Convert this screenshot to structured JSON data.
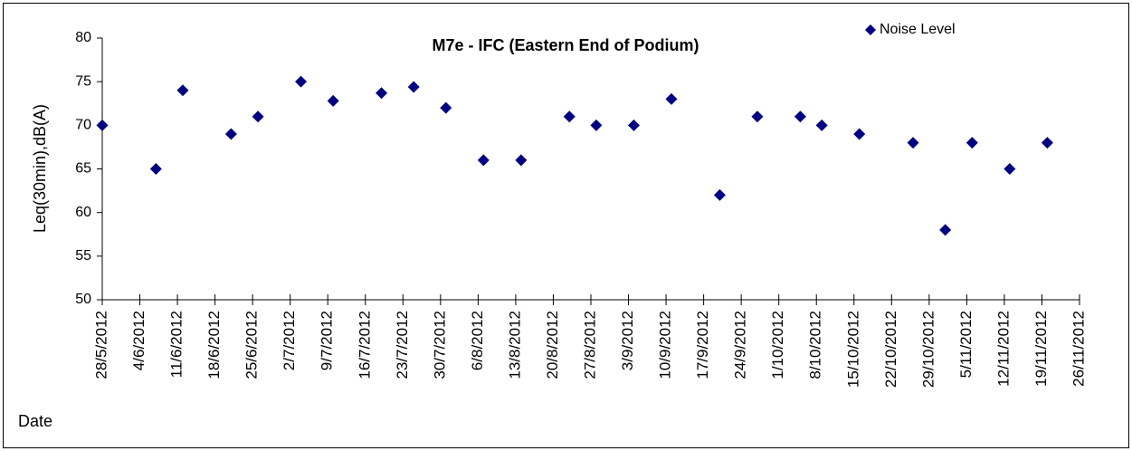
{
  "chart_data": {
    "type": "scatter",
    "title": "M7e - IFC (Eastern End of Podium)",
    "y_label": "Leq(30min),dB(A)",
    "x_label": "Date",
    "series": [
      {
        "name": "Noise Level",
        "color": "#000080",
        "x": [
          "2012-05-28",
          "2012-06-07",
          "2012-06-12",
          "2012-06-21",
          "2012-06-26",
          "2012-07-04",
          "2012-07-10",
          "2012-07-19",
          "2012-07-25",
          "2012-07-31",
          "2012-08-07",
          "2012-08-14",
          "2012-08-23",
          "2012-08-28",
          "2012-09-04",
          "2012-09-11",
          "2012-09-20",
          "2012-09-27",
          "2012-10-05",
          "2012-10-09",
          "2012-10-16",
          "2012-10-26",
          "2012-11-01",
          "2012-11-06",
          "2012-11-13",
          "2012-11-20"
        ],
        "values": [
          70,
          65,
          74,
          69,
          71,
          75,
          72.8,
          73.7,
          74.4,
          72,
          66,
          66,
          71,
          70,
          70,
          73,
          62,
          71,
          71,
          70,
          69,
          68,
          58,
          68,
          65,
          68
        ]
      }
    ],
    "xlim": [
      "2012-05-28",
      "2012-11-26"
    ],
    "xticks": [
      {
        "value": "2012-05-28",
        "label": "28/5/2012"
      },
      {
        "value": "2012-06-04",
        "label": "4/6/2012"
      },
      {
        "value": "2012-06-11",
        "label": "11/6/2012"
      },
      {
        "value": "2012-06-18",
        "label": "18/6/2012"
      },
      {
        "value": "2012-06-25",
        "label": "25/6/2012"
      },
      {
        "value": "2012-07-02",
        "label": "2/7/2012"
      },
      {
        "value": "2012-07-09",
        "label": "9/7/2012"
      },
      {
        "value": "2012-07-16",
        "label": "16/7/2012"
      },
      {
        "value": "2012-07-23",
        "label": "23/7/2012"
      },
      {
        "value": "2012-07-30",
        "label": "30/7/2012"
      },
      {
        "value": "2012-08-06",
        "label": "6/8/2012"
      },
      {
        "value": "2012-08-13",
        "label": "13/8/2012"
      },
      {
        "value": "2012-08-20",
        "label": "20/8/2012"
      },
      {
        "value": "2012-08-27",
        "label": "27/8/2012"
      },
      {
        "value": "2012-09-03",
        "label": "3/9/2012"
      },
      {
        "value": "2012-09-10",
        "label": "10/9/2012"
      },
      {
        "value": "2012-09-17",
        "label": "17/9/2012"
      },
      {
        "value": "2012-09-24",
        "label": "24/9/2012"
      },
      {
        "value": "2012-10-01",
        "label": "1/10/2012"
      },
      {
        "value": "2012-10-08",
        "label": "8/10/2012"
      },
      {
        "value": "2012-10-15",
        "label": "15/10/2012"
      },
      {
        "value": "2012-10-22",
        "label": "22/10/2012"
      },
      {
        "value": "2012-10-29",
        "label": "29/10/2012"
      },
      {
        "value": "2012-11-05",
        "label": "5/11/2012"
      },
      {
        "value": "2012-11-12",
        "label": "12/11/2012"
      },
      {
        "value": "2012-11-19",
        "label": "19/11/2012"
      },
      {
        "value": "2012-11-26",
        "label": "26/11/2012"
      }
    ],
    "ylim": [
      50,
      80
    ],
    "yticks": [
      50,
      55,
      60,
      65,
      70,
      75,
      80
    ],
    "legend": "top-right"
  }
}
